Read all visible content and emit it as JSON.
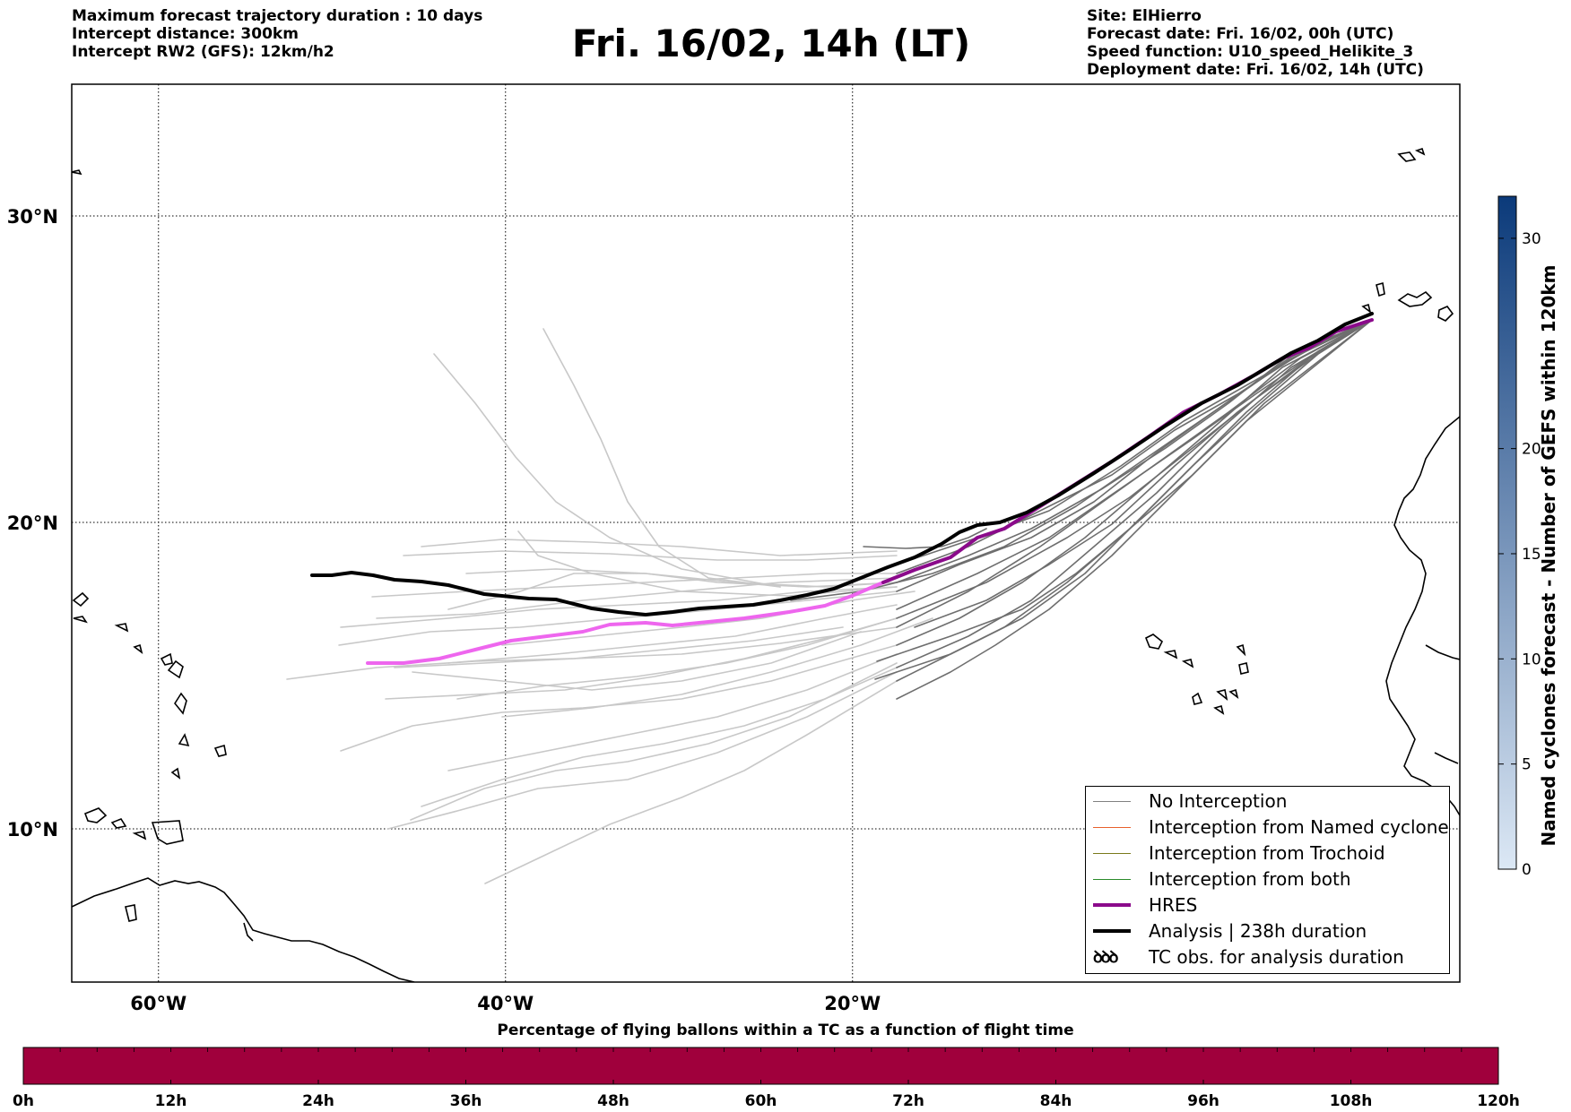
{
  "header_left": [
    "Maximum forecast trajectory duration : 10 days",
    "Intercept distance: 300km",
    "Intercept RW2 (GFS):  12km/h2"
  ],
  "title": "Fri. 16/02, 14h (LT)",
  "header_right": [
    "Site: ElHierro",
    "Forecast date: Fri. 16/02, 00h (UTC)",
    "Speed function: U10_speed_Helikite_3",
    "Deployment date: Fri. 16/02, 14h (UTC)"
  ],
  "map": {
    "lon_range": [
      -65,
      15
    ],
    "lat_range": [
      5,
      34.3
    ],
    "lon_ticks": [
      {
        "lon": -60,
        "label": "60°W"
      },
      {
        "lon": -40,
        "label": "40°W"
      },
      {
        "lon": -20,
        "label": "20°W"
      }
    ],
    "lat_ticks": [
      {
        "lat": 10,
        "label": "10°N"
      },
      {
        "lat": 20,
        "label": "20°N"
      },
      {
        "lat": 30,
        "label": "30°N"
      }
    ]
  },
  "legend": [
    {
      "label": "No Interception",
      "color": "#808080",
      "style": "thin"
    },
    {
      "label": "Interception from Named cyclone",
      "color": "#e8602c",
      "style": "thin"
    },
    {
      "label": "Interception from Trochoid",
      "color": "#7a7a1a",
      "style": "thin"
    },
    {
      "label": "Interception from both",
      "color": "#2a8a2a",
      "style": "thin"
    },
    {
      "label": "HRES",
      "color": "#8b0a8b",
      "style": "thick"
    },
    {
      "label": "Analysis | 238h duration",
      "color": "#000000",
      "style": "thick"
    },
    {
      "label": "TC obs. for analysis duration",
      "color": "#000000",
      "style": "symbol"
    }
  ],
  "legend_symbol": "ꝺꝺꝺ",
  "colorbar": {
    "label": "Named cyclones forecast - Number of GEFS within 120km",
    "ticks": [
      0,
      5,
      10,
      15,
      20,
      30
    ],
    "max": 32,
    "color_low": "#dce8f5",
    "color_high": "#0b3a7a"
  },
  "bottom_caption": "Percentage of flying ballons within a TC as a function of flight time",
  "time_bar": {
    "ticks": [
      "0h",
      "12h",
      "24h",
      "36h",
      "48h",
      "60h",
      "72h",
      "84h",
      "96h",
      "108h",
      "120h"
    ],
    "color": "#a0003c"
  }
}
